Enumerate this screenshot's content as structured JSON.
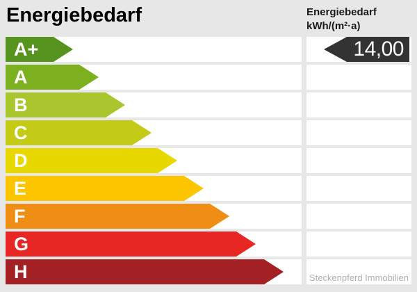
{
  "title": "Energiebedarf",
  "unit_header": {
    "line1": "Energiebedarf",
    "line2": "kWh/(m²·a)"
  },
  "value": {
    "text": "14,00",
    "row": "A+",
    "row_index": 0,
    "arrow_color": "#333333",
    "text_color": "#ffffff"
  },
  "watermark": "Steckenpferd Immobilien",
  "colors": {
    "background": "#e7e7e7",
    "row_background": "#ffffff",
    "title_text": "#000000",
    "watermark_text": "#b0b0b0"
  },
  "chart_data": {
    "type": "bar",
    "title": "Energiebedarf",
    "unit": "kWh/(m²·a)",
    "value_marker": {
      "rating": "A+",
      "value": "14,00"
    },
    "categories": [
      "A+",
      "A",
      "B",
      "C",
      "D",
      "E",
      "F",
      "G",
      "H"
    ],
    "series": [
      {
        "name": "rating-scale-bar-length-px",
        "values": [
          97,
          134,
          172,
          210,
          247,
          285,
          322,
          360,
          400
        ]
      }
    ],
    "bar_colors": [
      "#57941f",
      "#7db01e",
      "#aac62f",
      "#c3cb16",
      "#e9d800",
      "#fcc500",
      "#ef8d15",
      "#e62723",
      "#a32025"
    ],
    "legend": "none",
    "orientation": "horizontal"
  }
}
